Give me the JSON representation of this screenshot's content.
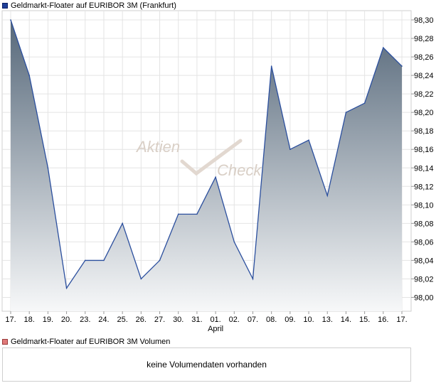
{
  "price_legend": {
    "label": "Geldmarkt-Floater auf EURIBOR 3M (Frankfurt)",
    "color": "#1f3f99"
  },
  "volume_legend": {
    "label": "Geldmarkt-Floater auf EURIBOR 3M Volumen",
    "color": "#e07a7a"
  },
  "volume_message": "keine Volumendaten vorhanden",
  "watermark": {
    "line1": "Aktien",
    "line2": "Check"
  },
  "chart_data": {
    "type": "area",
    "x": [
      "17.",
      "18.",
      "19.",
      "20.",
      "23.",
      "24.",
      "25.",
      "26.",
      "27.",
      "30.",
      "31.",
      "01.",
      "02.",
      "07.",
      "08.",
      "09.",
      "10.",
      "13.",
      "14.",
      "15.",
      "16.",
      "17."
    ],
    "x_sublabels": [
      {
        "index": 11,
        "text": "April"
      }
    ],
    "series": [
      {
        "values": [
          98.3,
          98.24,
          98.14,
          98.01,
          98.04,
          98.04,
          98.08,
          98.02,
          98.04,
          98.09,
          98.09,
          98.13,
          98.06,
          98.02,
          98.25,
          98.16,
          98.17,
          98.11,
          98.2,
          98.21,
          98.27,
          98.25
        ]
      }
    ],
    "yticks": [
      "98,00",
      "98,02",
      "98,04",
      "98,06",
      "98,08",
      "98,10",
      "98,12",
      "98,14",
      "98,16",
      "98,18",
      "98,20",
      "98,22",
      "98,24",
      "98,26",
      "98,28",
      "98,30"
    ],
    "ylim": [
      97.985,
      98.31
    ],
    "grid": true,
    "line_color": "#2b4f9e",
    "fill_top_color": "#56687a",
    "fill_bottom_color": "#f7f8f9"
  }
}
